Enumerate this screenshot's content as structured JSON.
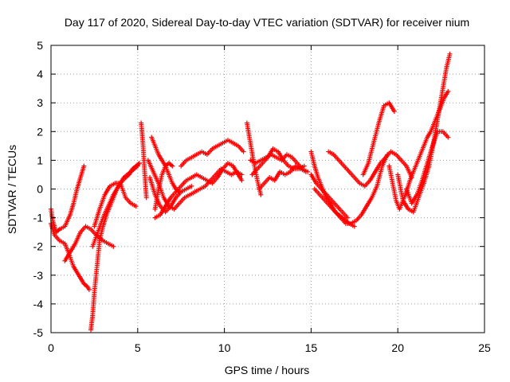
{
  "chart_data": {
    "type": "scatter",
    "title": "Day 117 of 2020, Sidereal Day-to-day VTEC variation (SDTVAR) for receiver nium",
    "xlabel": "GPS time / hours",
    "ylabel": "SDTVAR / TECUs",
    "xlim": [
      0,
      25
    ],
    "ylim": [
      -5,
      5
    ],
    "x_ticks": [
      0,
      5,
      10,
      15,
      20,
      25
    ],
    "x_tick_labels": [
      "0",
      "5",
      "10",
      "15",
      "20",
      "25"
    ],
    "y_ticks": [
      -5,
      -4,
      -3,
      -2,
      -1,
      0,
      1,
      2,
      3,
      4,
      5
    ],
    "y_tick_labels": [
      "-5",
      "-4",
      "-3",
      "-2",
      "-1",
      "0",
      "1",
      "2",
      "3",
      "4",
      "5"
    ],
    "grid": true,
    "marker": "+",
    "color": "#ff0000",
    "series": [
      {
        "x": [
          0.0,
          0.2,
          0.5,
          0.8,
          1.0,
          1.3,
          1.6,
          1.9,
          2.1,
          2.2
        ],
        "y": [
          -1.2,
          -1.6,
          -1.8,
          -1.9,
          -2.2,
          -2.7,
          -3.0,
          -3.3,
          -3.4,
          -3.5
        ]
      },
      {
        "x": [
          0.0,
          0.1,
          0.3,
          0.5,
          0.8,
          1.1,
          1.3,
          1.5,
          1.7,
          1.9
        ],
        "y": [
          -0.7,
          -1.1,
          -1.5,
          -1.4,
          -1.3,
          -0.9,
          -0.5,
          0.0,
          0.4,
          0.8
        ]
      },
      {
        "x": [
          0.8,
          1.1,
          1.4,
          1.7,
          2.0,
          2.3,
          2.6,
          3.0,
          3.3,
          3.6
        ],
        "y": [
          -2.5,
          -2.2,
          -1.9,
          -1.5,
          -1.3,
          -1.4,
          -1.6,
          -1.8,
          -1.9,
          -2.0
        ]
      },
      {
        "x": [
          2.3,
          2.4,
          2.5,
          2.6,
          2.7,
          2.8,
          3.0,
          3.2,
          3.4,
          3.6,
          3.8,
          4.0,
          4.3,
          4.5,
          4.7,
          4.9,
          5.1
        ],
        "y": [
          -4.9,
          -4.4,
          -3.6,
          -3.0,
          -2.4,
          -1.8,
          -1.3,
          -0.9,
          -0.6,
          -0.3,
          0.0,
          0.2,
          0.4,
          0.5,
          0.7,
          0.8,
          0.9
        ]
      },
      {
        "x": [
          2.4,
          2.7,
          3.0,
          3.3,
          3.6,
          3.9,
          4.2,
          4.6,
          5.0
        ],
        "y": [
          -2.0,
          -1.5,
          -1.0,
          -0.6,
          -0.2,
          0.1,
          0.4,
          0.6,
          0.8
        ]
      },
      {
        "x": [
          2.5,
          2.8,
          3.1,
          3.4,
          3.7,
          4.0,
          4.3,
          4.6,
          4.9
        ],
        "y": [
          -1.3,
          -0.7,
          -0.2,
          0.1,
          0.2,
          0.2,
          -0.3,
          -0.5,
          -0.6
        ]
      },
      {
        "x": [
          5.2,
          5.3,
          5.4,
          5.5
        ],
        "y": [
          2.3,
          1.6,
          0.6,
          -0.3
        ]
      },
      {
        "x": [
          5.8,
          6.0,
          6.2,
          6.4,
          6.6,
          6.8,
          7.0,
          7.2,
          7.4
        ],
        "y": [
          1.8,
          1.5,
          1.2,
          1.0,
          0.8,
          0.5,
          0.2,
          0.0,
          -0.1
        ]
      },
      {
        "x": [
          5.6,
          5.9,
          6.2,
          6.5,
          6.8,
          7.1,
          7.4,
          7.7,
          8.0,
          8.3,
          8.6,
          8.9,
          9.2,
          9.5,
          9.8,
          10.1,
          10.4,
          10.7,
          11.0
        ],
        "y": [
          1.0,
          0.6,
          0.2,
          -0.3,
          -0.6,
          -0.7,
          -0.5,
          -0.3,
          -0.2,
          -0.1,
          0.0,
          0.1,
          0.3,
          0.5,
          0.7,
          0.6,
          0.5,
          0.6,
          0.5
        ]
      },
      {
        "x": [
          5.7,
          6.0,
          6.3,
          6.6,
          6.9,
          7.2,
          7.5,
          7.8,
          8.1
        ],
        "y": [
          0.4,
          -0.2,
          -0.6,
          -0.8,
          -0.6,
          -0.3,
          -0.1,
          0.0,
          0.1
        ]
      },
      {
        "x": [
          6.0,
          6.3,
          6.6,
          6.9,
          7.2,
          7.5,
          7.8,
          8.1,
          8.4,
          8.7,
          9.0,
          9.3,
          9.6,
          9.9,
          10.2,
          10.5,
          10.8,
          11.0
        ],
        "y": [
          -1.0,
          -0.9,
          -0.6,
          -0.3,
          -0.1,
          0.1,
          0.3,
          0.4,
          0.5,
          0.4,
          0.3,
          0.2,
          0.4,
          0.7,
          0.9,
          0.8,
          0.5,
          0.3
        ]
      },
      {
        "x": [
          6.0,
          6.2,
          6.4,
          6.6,
          6.8,
          7.0
        ],
        "y": [
          -0.7,
          0.0,
          0.5,
          0.8,
          0.9,
          0.8
        ]
      },
      {
        "x": [
          7.5,
          7.8,
          8.1,
          8.4,
          8.7,
          9.0,
          9.3,
          9.6,
          9.9,
          10.2,
          10.5,
          10.8,
          11.1
        ],
        "y": [
          0.8,
          1.0,
          1.1,
          1.2,
          1.3,
          1.2,
          1.4,
          1.5,
          1.6,
          1.7,
          1.6,
          1.5,
          1.3
        ]
      },
      {
        "x": [
          11.3,
          11.5,
          11.7,
          11.9,
          12.1
        ],
        "y": [
          2.3,
          1.6,
          0.9,
          0.3,
          -0.2
        ]
      },
      {
        "x": [
          11.5,
          11.8,
          12.1,
          12.4,
          12.7,
          13.0,
          13.3,
          13.6,
          13.9,
          14.2,
          14.5,
          14.8
        ],
        "y": [
          1.0,
          0.9,
          1.0,
          1.1,
          1.2,
          1.1,
          1.0,
          1.2,
          1.1,
          0.9,
          0.7,
          0.6
        ]
      },
      {
        "x": [
          11.6,
          11.9,
          12.2,
          12.5,
          12.8,
          13.1,
          13.4,
          13.7,
          14.0,
          14.3,
          14.6
        ],
        "y": [
          0.5,
          0.7,
          0.9,
          1.1,
          1.4,
          1.3,
          1.0,
          0.8,
          0.7,
          0.7,
          0.8
        ]
      },
      {
        "x": [
          12.0,
          12.3,
          12.6,
          12.9,
          13.2,
          13.5,
          13.8,
          14.1,
          14.4,
          14.7
        ],
        "y": [
          0.0,
          0.2,
          0.4,
          0.3,
          0.6,
          0.5,
          0.6,
          0.8,
          0.7,
          0.6
        ]
      },
      {
        "x": [
          15.0,
          15.2,
          15.4,
          15.6,
          15.8,
          16.0,
          16.2,
          16.4,
          16.6,
          16.8,
          17.0,
          17.2,
          17.5
        ],
        "y": [
          1.3,
          0.8,
          0.4,
          0.1,
          -0.2,
          -0.4,
          -0.6,
          -0.8,
          -0.9,
          -1.0,
          -1.1,
          -1.2,
          -1.3
        ]
      },
      {
        "x": [
          15.0,
          15.3,
          15.6,
          15.9,
          16.2,
          16.5,
          16.8,
          17.1
        ],
        "y": [
          0.5,
          0.2,
          0.0,
          -0.2,
          -0.4,
          -0.6,
          -0.8,
          -1.0
        ]
      },
      {
        "x": [
          15.2,
          15.5,
          15.8,
          16.1,
          16.4,
          16.7,
          17.0,
          17.3,
          17.6,
          17.9,
          18.2,
          18.5,
          18.8,
          19.1,
          19.4
        ],
        "y": [
          0.0,
          -0.2,
          -0.4,
          -0.6,
          -0.8,
          -1.0,
          -1.2,
          -1.2,
          -1.1,
          -0.9,
          -0.6,
          -0.3,
          0.1,
          0.8,
          1.2
        ]
      },
      {
        "x": [
          16.0,
          16.3,
          16.6,
          16.9,
          17.2,
          17.5,
          17.8,
          18.1,
          18.4,
          18.7,
          19.0,
          19.3,
          19.6,
          19.9,
          20.2,
          20.5,
          20.8
        ],
        "y": [
          1.3,
          1.2,
          1.0,
          0.8,
          0.6,
          0.4,
          0.2,
          0.1,
          0.3,
          0.6,
          0.9,
          1.1,
          1.3,
          1.2,
          1.0,
          0.8,
          0.4
        ]
      },
      {
        "x": [
          18.0,
          18.3,
          18.6,
          18.9,
          19.2,
          19.5,
          19.8
        ],
        "y": [
          0.5,
          0.9,
          1.6,
          2.3,
          2.9,
          3.0,
          2.7
        ]
      },
      {
        "x": [
          19.5,
          19.7,
          19.9,
          20.1,
          20.3,
          20.5,
          20.7,
          20.9,
          21.1,
          21.3,
          21.5,
          21.7,
          21.9,
          22.1,
          22.3,
          22.5,
          22.7,
          22.9
        ],
        "y": [
          0.8,
          0.2,
          -0.4,
          -0.7,
          -0.4,
          -0.1,
          0.3,
          0.6,
          0.9,
          1.2,
          1.5,
          1.8,
          2.0,
          2.3,
          2.6,
          2.9,
          3.2,
          3.4
        ]
      },
      {
        "x": [
          20.0,
          20.3,
          20.6,
          20.9,
          21.2,
          21.5,
          21.8,
          22.0,
          22.2,
          22.4,
          22.6,
          22.8,
          23.0
        ],
        "y": [
          0.5,
          -0.4,
          -0.7,
          -0.8,
          -0.3,
          0.2,
          0.8,
          1.4,
          2.1,
          2.8,
          3.5,
          4.2,
          4.7
        ]
      },
      {
        "x": [
          20.5,
          20.8,
          21.1,
          21.4,
          21.7,
          22.0,
          22.3,
          22.6,
          22.9
        ],
        "y": [
          0.0,
          -0.5,
          -0.2,
          0.3,
          0.9,
          1.5,
          2.0,
          2.0,
          1.8
        ]
      }
    ]
  }
}
